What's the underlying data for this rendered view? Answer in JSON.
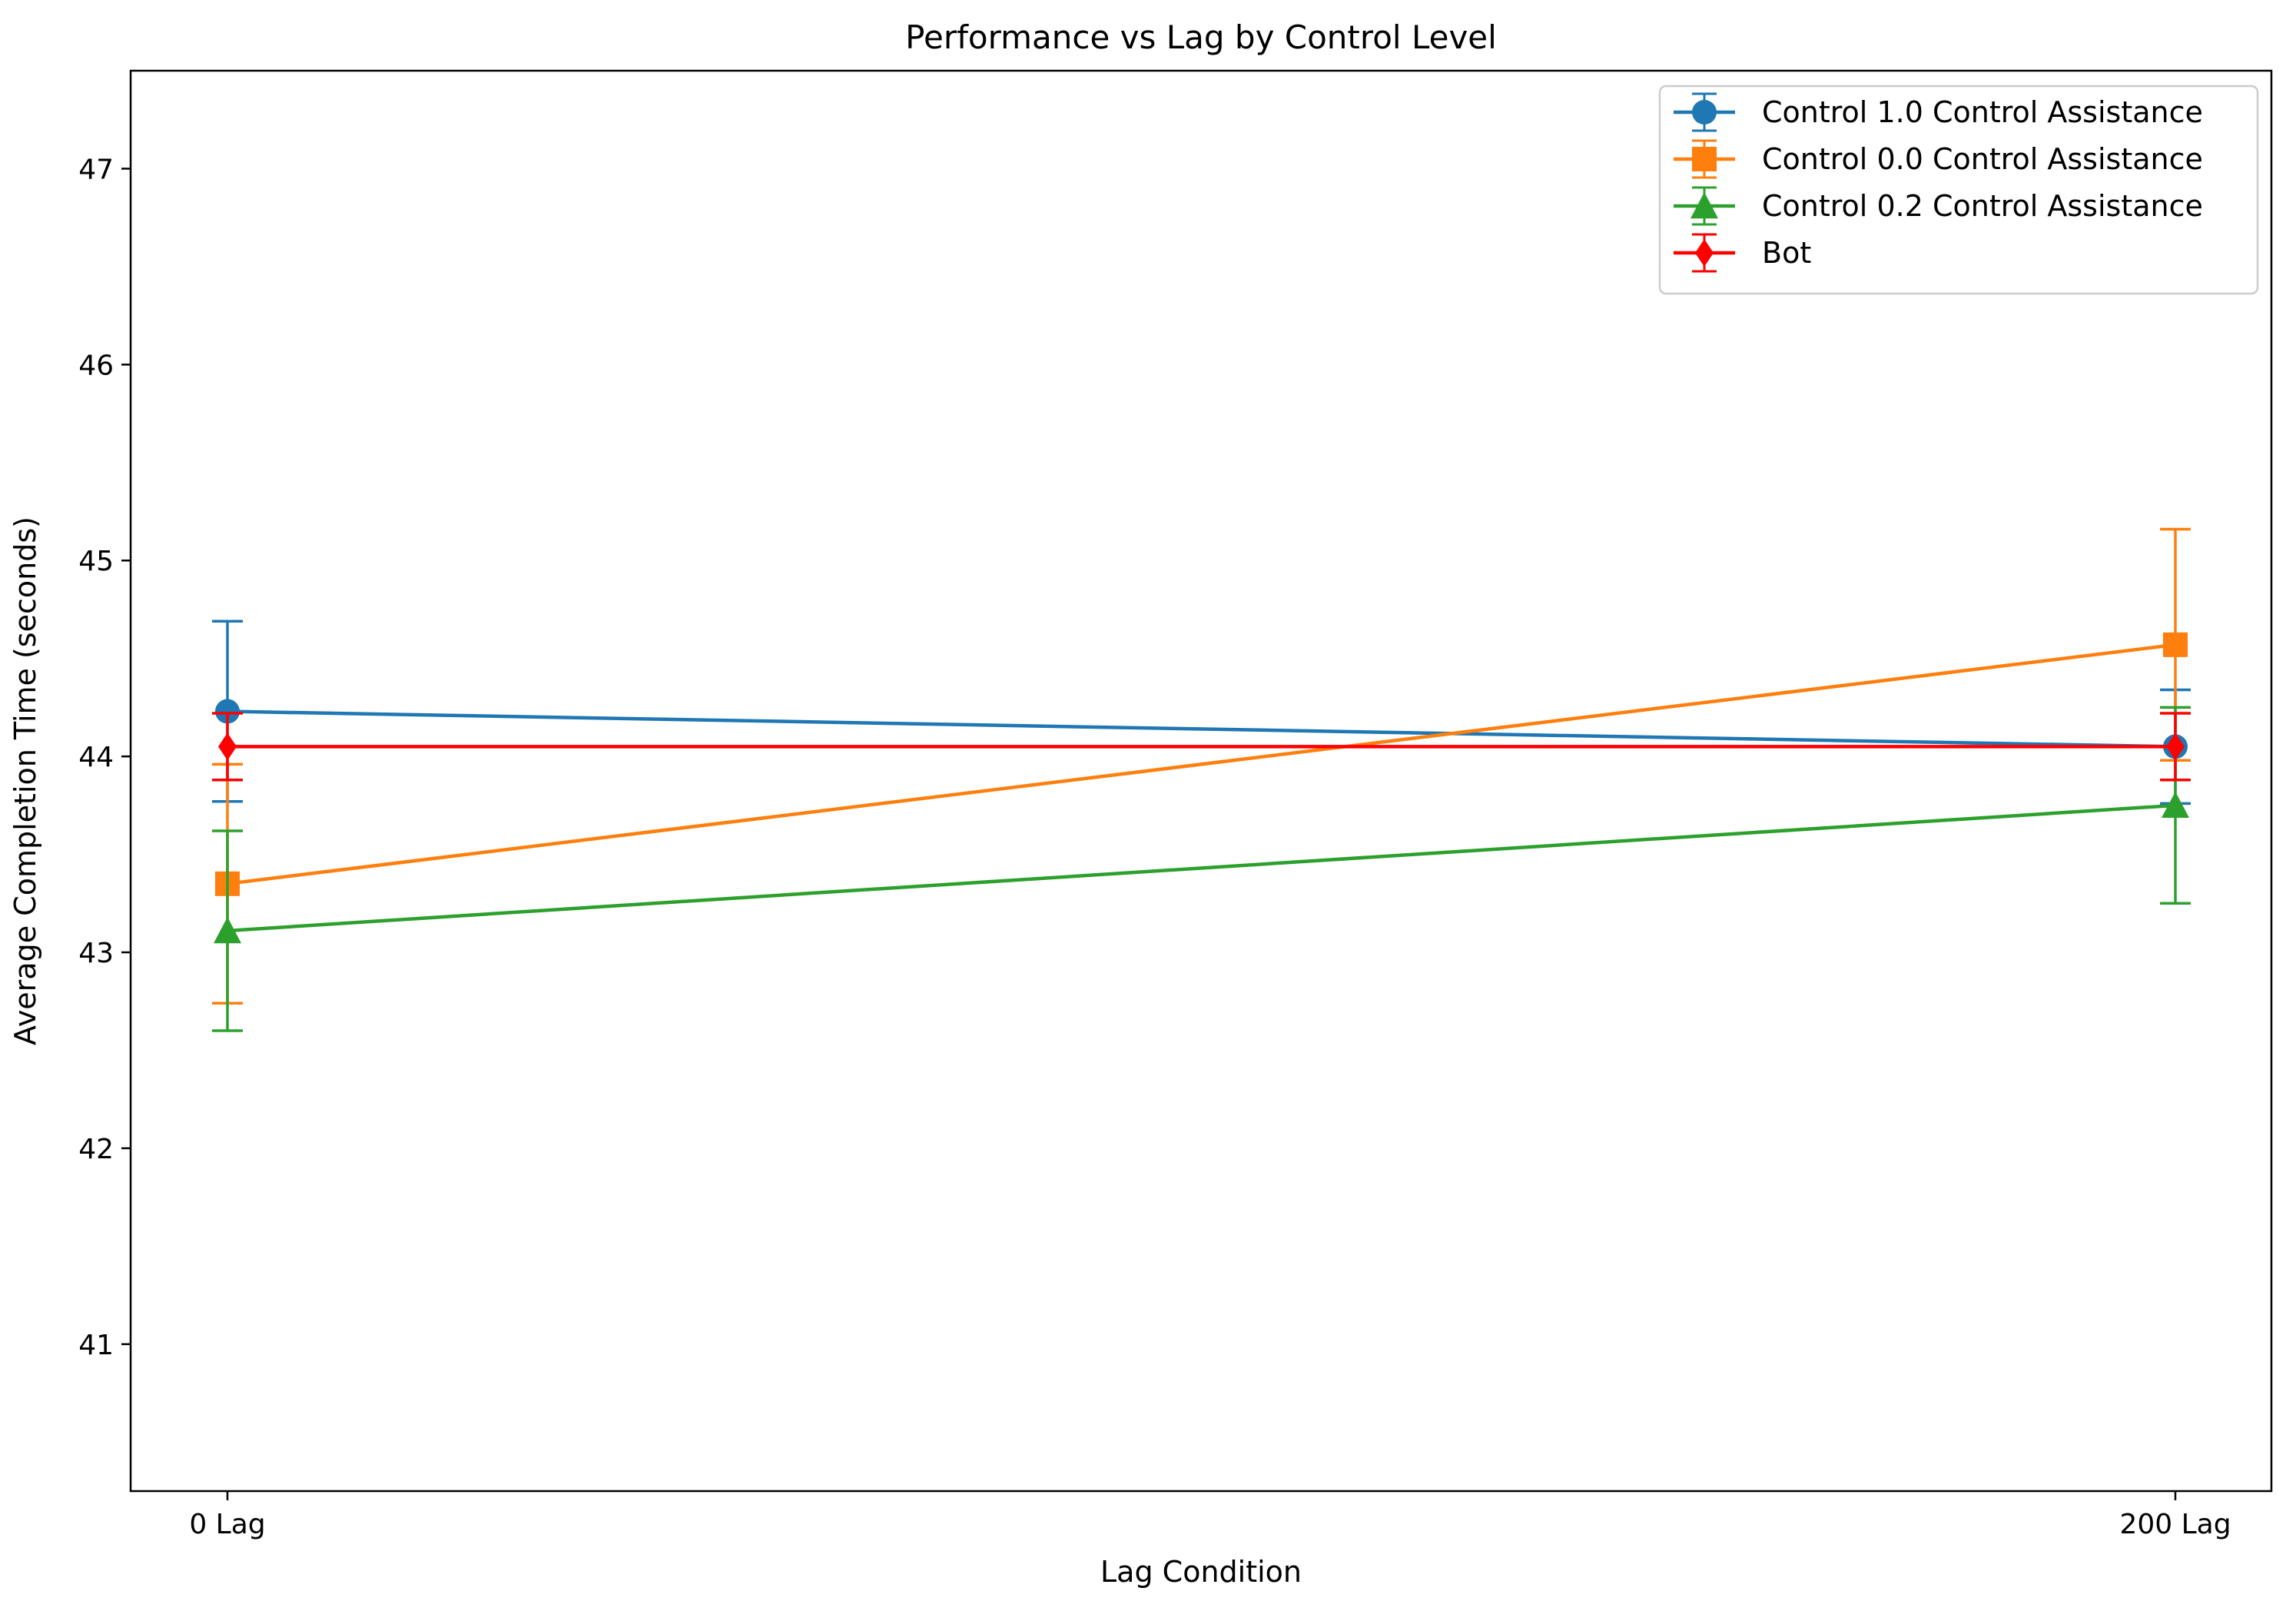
{
  "chart_data": {
    "type": "line",
    "title": "Performance vs Lag by Control Level",
    "xlabel": "Lag Condition",
    "ylabel": "Average Completion Time (seconds)",
    "categories": [
      "0 Lag",
      "200 Lag"
    ],
    "ylim": [
      40.25,
      47.5
    ],
    "yticks": [
      41,
      42,
      43,
      44,
      45,
      46,
      47
    ],
    "grid": false,
    "legend_position": "top-right",
    "error_bars": true,
    "series": [
      {
        "name": "Control 1.0 Control Assistance",
        "color": "#1f77b4",
        "marker": "circle",
        "values": [
          44.23,
          44.05
        ],
        "errors": [
          0.46,
          0.29
        ]
      },
      {
        "name": "Control 0.0 Control Assistance",
        "color": "#ff7f0e",
        "marker": "square",
        "values": [
          43.35,
          44.57
        ],
        "errors": [
          0.61,
          0.59
        ]
      },
      {
        "name": "Control 0.2 Control Assistance",
        "color": "#2ca02c",
        "marker": "triangle",
        "values": [
          43.11,
          43.75
        ],
        "errors": [
          0.51,
          0.5
        ]
      },
      {
        "name": "Bot",
        "color": "#ff0000",
        "marker": "diamond",
        "values": [
          44.05,
          44.05
        ],
        "errors": [
          0.17,
          0.17
        ]
      }
    ]
  }
}
